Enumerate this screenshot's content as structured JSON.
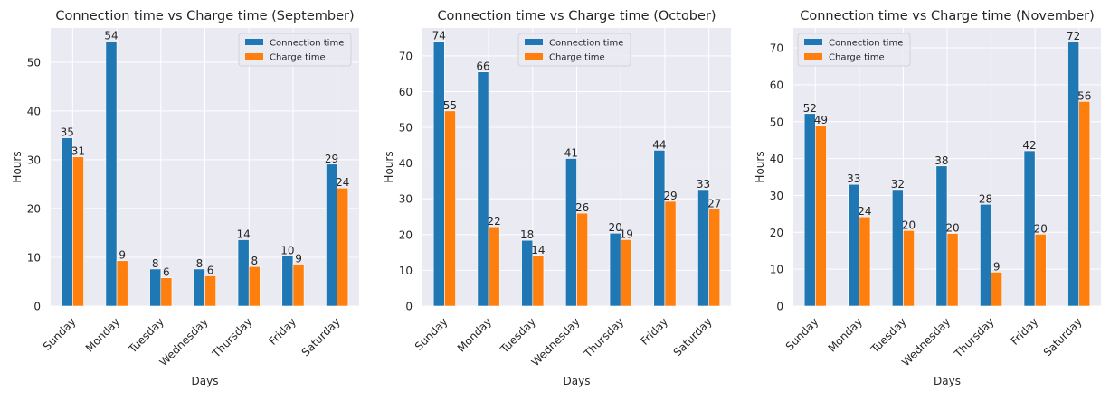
{
  "figure": {
    "background": "#ffffff",
    "plot_background": "#eaeaf2",
    "grid_color": "#ffffff",
    "series_colors": [
      "#1f77b4",
      "#ff7f0e"
    ]
  },
  "chart_data": [
    {
      "type": "bar",
      "title": "Connection time vs Charge time (September)",
      "xlabel": "Days",
      "ylabel": "Hours",
      "categories": [
        "Sunday",
        "Monday",
        "Tuesday",
        "Wednesday",
        "Thursday",
        "Friday",
        "Saturday"
      ],
      "series": [
        {
          "name": "Connection time",
          "values": [
            34.5,
            54.3,
            7.6,
            7.6,
            13.6,
            10.3,
            29.1
          ],
          "labels": [
            "35",
            "54",
            "8",
            "8",
            "14",
            "10",
            "29"
          ]
        },
        {
          "name": "Charge time",
          "values": [
            30.6,
            9.3,
            5.8,
            6.2,
            8.1,
            8.6,
            24.2
          ],
          "labels": [
            "31",
            "9",
            "6",
            "6",
            "8",
            "9",
            "24"
          ]
        }
      ],
      "ylim": [
        0,
        57
      ],
      "yticks": [
        0,
        10,
        20,
        30,
        40,
        50
      ],
      "grid": true,
      "legend": "upper right"
    },
    {
      "type": "bar",
      "title": "Connection time vs Charge time (October)",
      "xlabel": "Days",
      "ylabel": "Hours",
      "categories": [
        "Sunday",
        "Monday",
        "Tuesday",
        "Wednesday",
        "Thursday",
        "Friday",
        "Saturday"
      ],
      "series": [
        {
          "name": "Connection time",
          "values": [
            74.1,
            65.5,
            18.4,
            41.3,
            20.4,
            43.6,
            32.6
          ],
          "labels": [
            "74",
            "66",
            "18",
            "41",
            "20",
            "44",
            "33"
          ]
        },
        {
          "name": "Charge time",
          "values": [
            54.6,
            22.2,
            14.2,
            26.0,
            18.6,
            29.3,
            27.1
          ],
          "labels": [
            "55",
            "22",
            "14",
            "26",
            "19",
            "29",
            "27"
          ]
        }
      ],
      "ylim": [
        0,
        77.8
      ],
      "yticks": [
        0,
        10,
        20,
        30,
        40,
        50,
        60,
        70
      ],
      "grid": true,
      "legend": "upper center"
    },
    {
      "type": "bar",
      "title": "Connection time vs Charge time (November)",
      "xlabel": "Days",
      "ylabel": "Hours",
      "categories": [
        "Sunday",
        "Monday",
        "Tuesday",
        "Wednesday",
        "Thursday",
        "Friday",
        "Saturday"
      ],
      "series": [
        {
          "name": "Connection time",
          "values": [
            52.2,
            33.0,
            31.6,
            38.0,
            27.6,
            42.1,
            71.7
          ],
          "labels": [
            "52",
            "33",
            "32",
            "38",
            "28",
            "42",
            "72"
          ]
        },
        {
          "name": "Charge time",
          "values": [
            49.0,
            24.2,
            20.5,
            19.7,
            9.2,
            19.5,
            55.5
          ],
          "labels": [
            "49",
            "24",
            "20",
            "20",
            "9",
            "20",
            "56"
          ]
        }
      ],
      "ylim": [
        0,
        75.4
      ],
      "yticks": [
        0,
        10,
        20,
        30,
        40,
        50,
        60,
        70
      ],
      "grid": true,
      "legend": "upper left"
    }
  ]
}
